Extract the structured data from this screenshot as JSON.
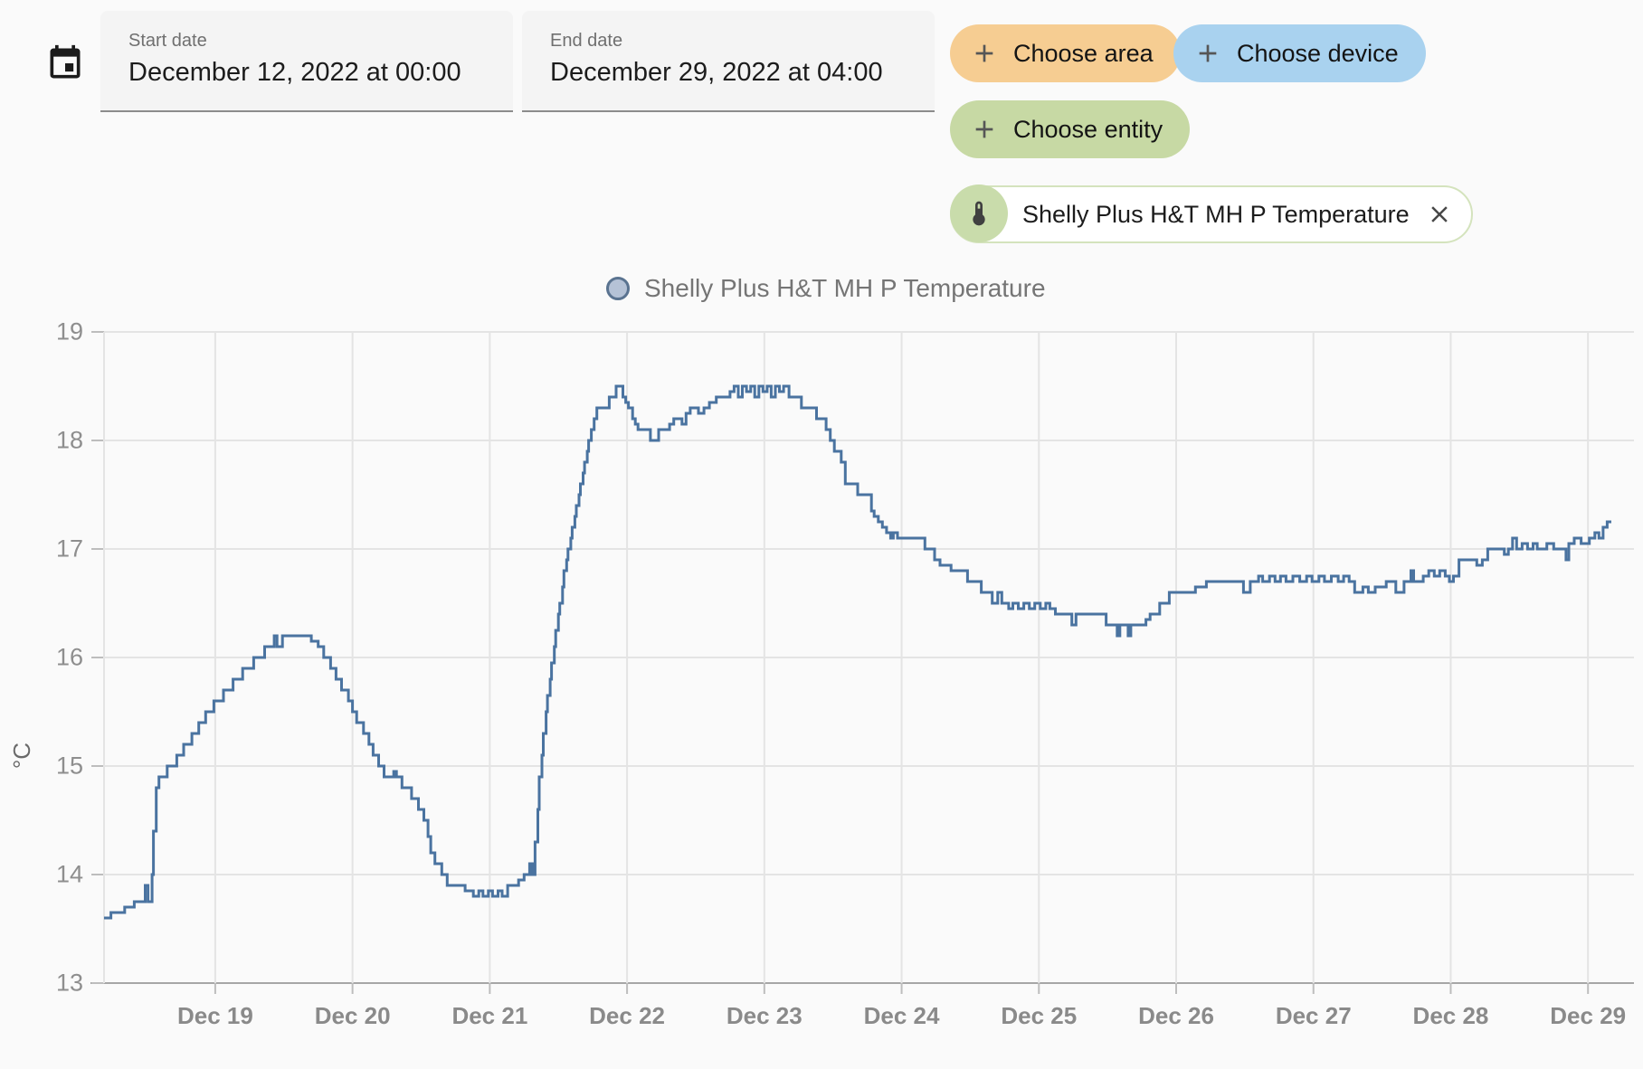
{
  "header": {
    "start_date": {
      "label": "Start date",
      "value": "December 12, 2022 at 00:00"
    },
    "end_date": {
      "label": "End date",
      "value": "December 29, 2022 at 04:00"
    },
    "buttons": {
      "choose_area": {
        "label": "Choose area",
        "bg": "#f6cd92"
      },
      "choose_device": {
        "label": "Choose device",
        "bg": "#a9d2ef"
      },
      "choose_entity": {
        "label": "Choose entity",
        "bg": "#c7d9a4"
      }
    },
    "entity_chip": {
      "label": "Shelly Plus H&T MH P Temperature",
      "accent": "#c9dcab",
      "border": "#d4e3bd"
    }
  },
  "chart_data": {
    "type": "line",
    "step": "after",
    "title": "",
    "ylabel": "°C",
    "legend": [
      {
        "label": "Shelly Plus H&T MH P Temperature",
        "line_color": "#4a73a0",
        "marker_fill": "#b5c2d6",
        "marker_stroke": "#5a7390",
        "position": "top-center"
      }
    ],
    "grid": true,
    "ylim": [
      13,
      19
    ],
    "y_ticks": [
      13,
      14,
      15,
      16,
      17,
      18,
      19
    ],
    "xlim_days": [
      18.19,
      29.17
    ],
    "x_ticks": [
      {
        "day": 19,
        "label": "Dec 19"
      },
      {
        "day": 20,
        "label": "Dec 20"
      },
      {
        "day": 21,
        "label": "Dec 21"
      },
      {
        "day": 22,
        "label": "Dec 22"
      },
      {
        "day": 23,
        "label": "Dec 23"
      },
      {
        "day": 24,
        "label": "Dec 24"
      },
      {
        "day": 25,
        "label": "Dec 25"
      },
      {
        "day": 26,
        "label": "Dec 26"
      },
      {
        "day": 27,
        "label": "Dec 27"
      },
      {
        "day": 28,
        "label": "Dec 28"
      },
      {
        "day": 29,
        "label": "Dec 29"
      }
    ],
    "series": [
      {
        "name": "Shelly Plus H&T MH P Temperature",
        "color": "#4a73a0",
        "unit": "°C",
        "points": [
          [
            18.19,
            13.6
          ],
          [
            18.24,
            13.65
          ],
          [
            18.34,
            13.7
          ],
          [
            18.41,
            13.75
          ],
          [
            18.49,
            13.9
          ],
          [
            18.51,
            13.75
          ],
          [
            18.54,
            14.0
          ],
          [
            18.55,
            14.4
          ],
          [
            18.57,
            14.8
          ],
          [
            18.59,
            14.9
          ],
          [
            18.65,
            15.0
          ],
          [
            18.72,
            15.1
          ],
          [
            18.77,
            15.2
          ],
          [
            18.83,
            15.3
          ],
          [
            18.88,
            15.4
          ],
          [
            18.93,
            15.5
          ],
          [
            18.99,
            15.6
          ],
          [
            19.06,
            15.7
          ],
          [
            19.13,
            15.8
          ],
          [
            19.2,
            15.9
          ],
          [
            19.28,
            16.0
          ],
          [
            19.36,
            16.1
          ],
          [
            19.43,
            16.2
          ],
          [
            19.45,
            16.1
          ],
          [
            19.49,
            16.2
          ],
          [
            19.7,
            16.15
          ],
          [
            19.75,
            16.1
          ],
          [
            19.79,
            16.0
          ],
          [
            19.84,
            15.9
          ],
          [
            19.88,
            15.8
          ],
          [
            19.92,
            15.7
          ],
          [
            19.97,
            15.6
          ],
          [
            20.0,
            15.5
          ],
          [
            20.03,
            15.4
          ],
          [
            20.08,
            15.3
          ],
          [
            20.12,
            15.2
          ],
          [
            20.15,
            15.1
          ],
          [
            20.19,
            15.0
          ],
          [
            20.23,
            14.9
          ],
          [
            20.3,
            14.95
          ],
          [
            20.32,
            14.9
          ],
          [
            20.36,
            14.8
          ],
          [
            20.43,
            14.7
          ],
          [
            20.48,
            14.6
          ],
          [
            20.52,
            14.5
          ],
          [
            20.55,
            14.35
          ],
          [
            20.57,
            14.2
          ],
          [
            20.6,
            14.1
          ],
          [
            20.65,
            14.0
          ],
          [
            20.69,
            13.9
          ],
          [
            20.82,
            13.85
          ],
          [
            20.88,
            13.8
          ],
          [
            20.92,
            13.85
          ],
          [
            20.95,
            13.8
          ],
          [
            20.99,
            13.85
          ],
          [
            21.02,
            13.8
          ],
          [
            21.06,
            13.85
          ],
          [
            21.09,
            13.8
          ],
          [
            21.13,
            13.9
          ],
          [
            21.21,
            13.95
          ],
          [
            21.25,
            14.0
          ],
          [
            21.29,
            14.1
          ],
          [
            21.31,
            14.0
          ],
          [
            21.33,
            14.3
          ],
          [
            21.35,
            14.6
          ],
          [
            21.36,
            14.9
          ],
          [
            21.38,
            15.1
          ],
          [
            21.39,
            15.3
          ],
          [
            21.41,
            15.5
          ],
          [
            21.42,
            15.65
          ],
          [
            21.44,
            15.8
          ],
          [
            21.45,
            15.95
          ],
          [
            21.47,
            16.1
          ],
          [
            21.48,
            16.25
          ],
          [
            21.5,
            16.4
          ],
          [
            21.51,
            16.5
          ],
          [
            21.53,
            16.65
          ],
          [
            21.54,
            16.8
          ],
          [
            21.56,
            16.9
          ],
          [
            21.57,
            17.0
          ],
          [
            21.59,
            17.1
          ],
          [
            21.6,
            17.2
          ],
          [
            21.62,
            17.3
          ],
          [
            21.63,
            17.4
          ],
          [
            21.65,
            17.5
          ],
          [
            21.66,
            17.6
          ],
          [
            21.68,
            17.7
          ],
          [
            21.69,
            17.8
          ],
          [
            21.71,
            17.9
          ],
          [
            21.72,
            18.0
          ],
          [
            21.74,
            18.1
          ],
          [
            21.76,
            18.2
          ],
          [
            21.78,
            18.3
          ],
          [
            21.87,
            18.4
          ],
          [
            21.92,
            18.5
          ],
          [
            21.97,
            18.4
          ],
          [
            21.99,
            18.35
          ],
          [
            22.01,
            18.3
          ],
          [
            22.04,
            18.2
          ],
          [
            22.06,
            18.15
          ],
          [
            22.08,
            18.1
          ],
          [
            22.17,
            18.0
          ],
          [
            22.23,
            18.1
          ],
          [
            22.31,
            18.15
          ],
          [
            22.34,
            18.2
          ],
          [
            22.4,
            18.15
          ],
          [
            22.43,
            18.25
          ],
          [
            22.46,
            18.3
          ],
          [
            22.52,
            18.25
          ],
          [
            22.56,
            18.3
          ],
          [
            22.6,
            18.35
          ],
          [
            22.65,
            18.4
          ],
          [
            22.75,
            18.45
          ],
          [
            22.78,
            18.5
          ],
          [
            22.81,
            18.4
          ],
          [
            22.84,
            18.5
          ],
          [
            22.87,
            18.45
          ],
          [
            22.9,
            18.5
          ],
          [
            22.93,
            18.4
          ],
          [
            22.96,
            18.5
          ],
          [
            22.99,
            18.45
          ],
          [
            23.02,
            18.5
          ],
          [
            23.05,
            18.4
          ],
          [
            23.08,
            18.5
          ],
          [
            23.11,
            18.45
          ],
          [
            23.14,
            18.5
          ],
          [
            23.18,
            18.4
          ],
          [
            23.27,
            18.3
          ],
          [
            23.38,
            18.2
          ],
          [
            23.45,
            18.1
          ],
          [
            23.48,
            18.0
          ],
          [
            23.51,
            17.9
          ],
          [
            23.56,
            17.8
          ],
          [
            23.59,
            17.6
          ],
          [
            23.68,
            17.5
          ],
          [
            23.78,
            17.35
          ],
          [
            23.8,
            17.3
          ],
          [
            23.83,
            17.25
          ],
          [
            23.86,
            17.2
          ],
          [
            23.89,
            17.15
          ],
          [
            23.92,
            17.1
          ],
          [
            23.94,
            17.15
          ],
          [
            23.97,
            17.1
          ],
          [
            24.17,
            17.0
          ],
          [
            24.24,
            16.9
          ],
          [
            24.28,
            16.85
          ],
          [
            24.36,
            16.8
          ],
          [
            24.48,
            16.7
          ],
          [
            24.58,
            16.6
          ],
          [
            24.66,
            16.5
          ],
          [
            24.7,
            16.6
          ],
          [
            24.73,
            16.5
          ],
          [
            24.78,
            16.45
          ],
          [
            24.81,
            16.5
          ],
          [
            24.85,
            16.45
          ],
          [
            24.89,
            16.5
          ],
          [
            24.93,
            16.45
          ],
          [
            24.97,
            16.5
          ],
          [
            25.01,
            16.45
          ],
          [
            25.05,
            16.5
          ],
          [
            25.08,
            16.45
          ],
          [
            25.12,
            16.4
          ],
          [
            25.24,
            16.3
          ],
          [
            25.27,
            16.4
          ],
          [
            25.49,
            16.3
          ],
          [
            25.57,
            16.2
          ],
          [
            25.59,
            16.3
          ],
          [
            25.65,
            16.2
          ],
          [
            25.67,
            16.3
          ],
          [
            25.78,
            16.35
          ],
          [
            25.81,
            16.4
          ],
          [
            25.88,
            16.5
          ],
          [
            25.95,
            16.6
          ],
          [
            26.14,
            16.65
          ],
          [
            26.22,
            16.7
          ],
          [
            26.49,
            16.6
          ],
          [
            26.54,
            16.7
          ],
          [
            26.6,
            16.75
          ],
          [
            26.63,
            16.7
          ],
          [
            26.68,
            16.75
          ],
          [
            26.72,
            16.7
          ],
          [
            26.76,
            16.75
          ],
          [
            26.8,
            16.7
          ],
          [
            26.85,
            16.75
          ],
          [
            26.9,
            16.7
          ],
          [
            26.95,
            16.75
          ],
          [
            26.99,
            16.7
          ],
          [
            27.04,
            16.75
          ],
          [
            27.08,
            16.7
          ],
          [
            27.13,
            16.75
          ],
          [
            27.18,
            16.7
          ],
          [
            27.22,
            16.75
          ],
          [
            27.26,
            16.7
          ],
          [
            27.3,
            16.6
          ],
          [
            27.36,
            16.65
          ],
          [
            27.4,
            16.6
          ],
          [
            27.45,
            16.65
          ],
          [
            27.53,
            16.7
          ],
          [
            27.6,
            16.6
          ],
          [
            27.66,
            16.7
          ],
          [
            27.71,
            16.8
          ],
          [
            27.73,
            16.7
          ],
          [
            27.8,
            16.75
          ],
          [
            27.84,
            16.8
          ],
          [
            27.88,
            16.75
          ],
          [
            27.92,
            16.8
          ],
          [
            27.96,
            16.75
          ],
          [
            27.99,
            16.7
          ],
          [
            28.02,
            16.75
          ],
          [
            28.06,
            16.9
          ],
          [
            28.19,
            16.85
          ],
          [
            28.23,
            16.9
          ],
          [
            28.27,
            17.0
          ],
          [
            28.39,
            16.95
          ],
          [
            28.42,
            17.0
          ],
          [
            28.45,
            17.1
          ],
          [
            28.48,
            17.0
          ],
          [
            28.52,
            17.05
          ],
          [
            28.56,
            17.0
          ],
          [
            28.6,
            17.05
          ],
          [
            28.63,
            17.0
          ],
          [
            28.7,
            17.05
          ],
          [
            28.75,
            17.0
          ],
          [
            28.84,
            16.9
          ],
          [
            28.86,
            17.05
          ],
          [
            28.9,
            17.1
          ],
          [
            28.95,
            17.05
          ],
          [
            29.01,
            17.1
          ],
          [
            29.05,
            17.15
          ],
          [
            29.08,
            17.1
          ],
          [
            29.11,
            17.2
          ],
          [
            29.14,
            17.25
          ],
          [
            29.17,
            17.25
          ]
        ]
      }
    ],
    "colors": {
      "gridline": "#e4e4e4",
      "axis_line": "#a6a6a6",
      "tick": "#bdbdbd",
      "x_tick_label": "#8a8a8a",
      "y_tick_label": "#8e8e8e"
    }
  }
}
